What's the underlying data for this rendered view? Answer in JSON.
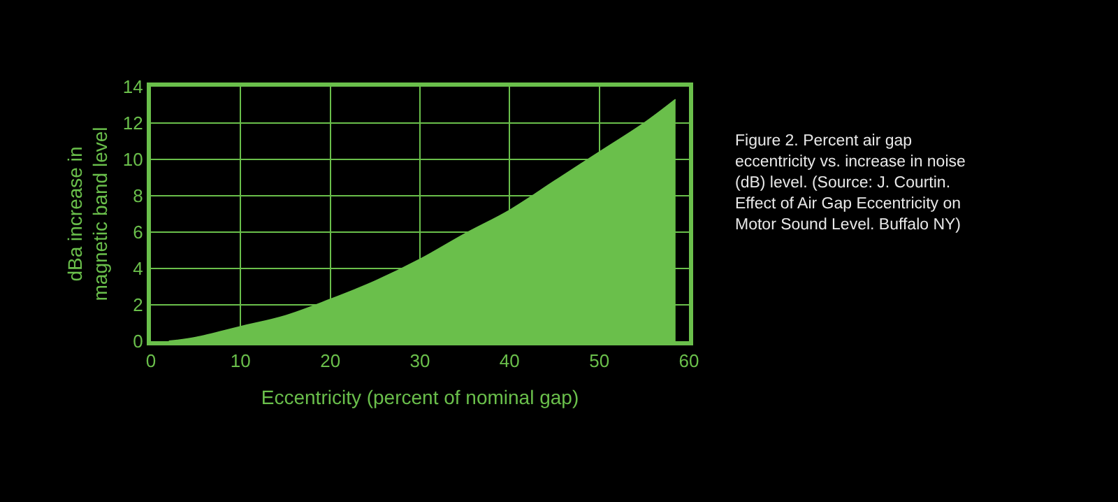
{
  "chart_data": {
    "type": "area",
    "xlabel": "Eccentricity (percent of nominal gap)",
    "ylabel": "dBa increase in magnetic band level",
    "x": [
      2,
      5,
      10,
      15,
      20,
      25,
      30,
      35,
      40,
      45,
      50,
      55,
      58.5
    ],
    "series": [
      {
        "color": "#6abf4b",
        "values": [
          0,
          0.2,
          0.8,
          1.4,
          2.3,
          3.3,
          4.5,
          5.9,
          7.2,
          8.8,
          10.4,
          12.0,
          13.3
        ]
      }
    ],
    "xlim": [
      0,
      60
    ],
    "xticks": [
      0,
      10,
      20,
      30,
      40,
      50,
      60
    ],
    "ylim": [
      0,
      14
    ],
    "yticks": [
      0,
      2,
      4,
      6,
      8,
      10,
      12,
      14
    ],
    "grid": true,
    "annotations": [
      "Figure 2. Percent air gap eccentricity vs. increase in noise (dB) level. (Source: J. Courtin. Effect of Air Gap Eccentricity on Motor Sound Level. Buffalo NY)"
    ]
  }
}
